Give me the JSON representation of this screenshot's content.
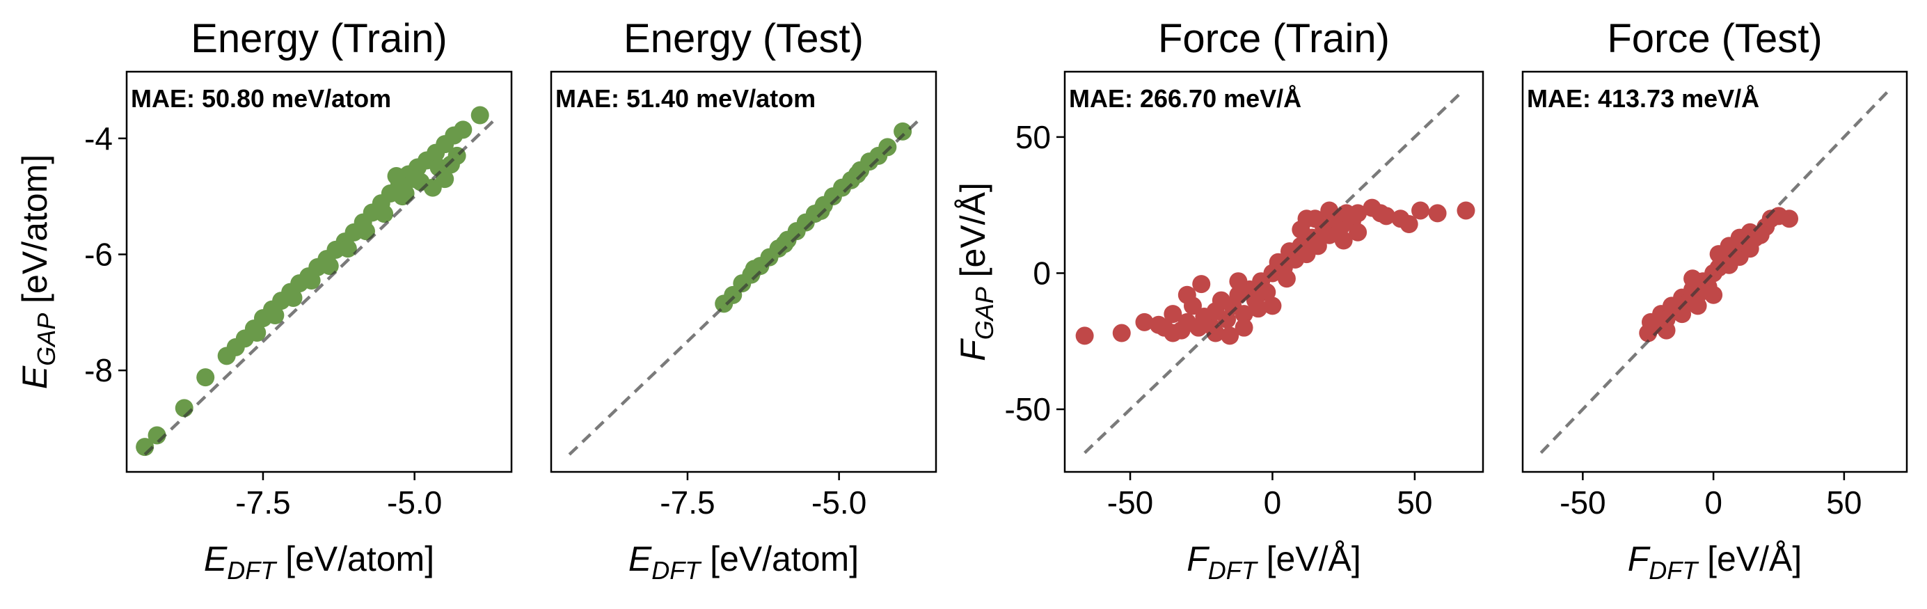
{
  "chart_data": [
    {
      "type": "scatter",
      "title": "Energy (Train)",
      "xlabel": {
        "main": "E",
        "sub": "DFT",
        "unit": " [eV/atom]"
      },
      "ylabel": {
        "main": "E",
        "sub": "GAP",
        "unit": " [eV/atom]"
      },
      "annotation": "MAE: 50.80 meV/atom",
      "xlim": [
        -9.75,
        -3.4
      ],
      "ylim": [
        -9.75,
        -2.85
      ],
      "xticks": [
        -7.5,
        -5.0
      ],
      "xtick_labels": [
        "-7.5",
        "-5.0"
      ],
      "yticks": [
        -8,
        -6,
        -4
      ],
      "ytick_labels": [
        "-8",
        "-6",
        "-4"
      ],
      "show_yticks": true,
      "color": "#6a9a4a",
      "diagonal": [
        -9.45,
        -3.7
      ],
      "points": [
        [
          -9.45,
          -9.32
        ],
        [
          -9.25,
          -9.12
        ],
        [
          -8.8,
          -8.65
        ],
        [
          -8.45,
          -8.12
        ],
        [
          -8.1,
          -7.75
        ],
        [
          -7.95,
          -7.6
        ],
        [
          -7.8,
          -7.45
        ],
        [
          -7.65,
          -7.28
        ],
        [
          -7.5,
          -7.1
        ],
        [
          -7.35,
          -6.95
        ],
        [
          -7.2,
          -6.8
        ],
        [
          -7.05,
          -6.65
        ],
        [
          -6.9,
          -6.5
        ],
        [
          -6.75,
          -6.38
        ],
        [
          -6.6,
          -6.22
        ],
        [
          -6.45,
          -6.08
        ],
        [
          -6.3,
          -5.92
        ],
        [
          -6.15,
          -5.78
        ],
        [
          -6.0,
          -5.62
        ],
        [
          -5.85,
          -5.45
        ],
        [
          -5.7,
          -5.28
        ],
        [
          -5.55,
          -5.12
        ],
        [
          -5.4,
          -4.95
        ],
        [
          -5.25,
          -4.8
        ],
        [
          -5.1,
          -4.62
        ],
        [
          -4.95,
          -4.5
        ],
        [
          -4.8,
          -4.38
        ],
        [
          -4.65,
          -4.25
        ],
        [
          -4.5,
          -4.1
        ],
        [
          -4.35,
          -3.95
        ],
        [
          -4.2,
          -3.85
        ],
        [
          -3.92,
          -3.6
        ],
        [
          -7.6,
          -7.35
        ],
        [
          -7.3,
          -7.05
        ],
        [
          -7.0,
          -6.75
        ],
        [
          -6.7,
          -6.45
        ],
        [
          -6.4,
          -6.2
        ],
        [
          -6.1,
          -5.9
        ],
        [
          -5.8,
          -5.6
        ],
        [
          -5.5,
          -5.3
        ],
        [
          -5.2,
          -5.0
        ],
        [
          -4.9,
          -4.75
        ],
        [
          -4.6,
          -4.5
        ],
        [
          -4.4,
          -4.45
        ],
        [
          -4.5,
          -4.7
        ],
        [
          -4.7,
          -4.85
        ],
        [
          -5.0,
          -4.7
        ],
        [
          -5.3,
          -4.65
        ],
        [
          -5.15,
          -4.95
        ],
        [
          -4.3,
          -4.3
        ]
      ]
    },
    {
      "type": "scatter",
      "title": "Energy (Test)",
      "xlabel": {
        "main": "E",
        "sub": "DFT",
        "unit": " [eV/atom]"
      },
      "ylabel": null,
      "annotation": "MAE: 51.40 meV/atom",
      "xlim": [
        -9.75,
        -3.4
      ],
      "ylim": [
        -9.75,
        -2.85
      ],
      "xticks": [
        -7.5,
        -5.0
      ],
      "xtick_labels": [
        "-7.5",
        "-5.0"
      ],
      "yticks": [],
      "ytick_labels": [],
      "show_yticks": false,
      "color": "#6a9a4a",
      "diagonal": [
        -9.45,
        -3.7
      ],
      "points": [
        [
          -6.9,
          -6.85
        ],
        [
          -6.75,
          -6.7
        ],
        [
          -6.6,
          -6.5
        ],
        [
          -6.45,
          -6.35
        ],
        [
          -6.3,
          -6.2
        ],
        [
          -6.15,
          -6.05
        ],
        [
          -6.0,
          -5.9
        ],
        [
          -5.85,
          -5.75
        ],
        [
          -5.7,
          -5.6
        ],
        [
          -5.55,
          -5.45
        ],
        [
          -5.4,
          -5.3
        ],
        [
          -5.25,
          -5.15
        ],
        [
          -5.1,
          -5.0
        ],
        [
          -4.95,
          -4.85
        ],
        [
          -4.8,
          -4.72
        ],
        [
          -4.65,
          -4.55
        ],
        [
          -4.5,
          -4.4
        ],
        [
          -4.35,
          -4.3
        ],
        [
          -4.2,
          -4.15
        ],
        [
          -3.95,
          -3.88
        ],
        [
          -6.4,
          -6.25
        ],
        [
          -5.9,
          -5.82
        ],
        [
          -5.3,
          -5.25
        ],
        [
          -4.7,
          -4.62
        ]
      ]
    },
    {
      "type": "scatter",
      "title": "Force (Train)",
      "xlabel": {
        "main": "F",
        "sub": "DFT",
        "unit": " [eV/Å]"
      },
      "ylabel": {
        "main": "F",
        "sub": "GAP",
        "unit": " [eV/Å]"
      },
      "annotation": "MAE: 266.70 meV/Å",
      "xlim": [
        -73,
        74
      ],
      "ylim": [
        -73,
        74
      ],
      "xticks": [
        -50,
        0,
        50
      ],
      "xtick_labels": [
        "-50",
        "0",
        "50"
      ],
      "yticks": [
        -50,
        0,
        50
      ],
      "ytick_labels": [
        "-50",
        "0",
        "50"
      ],
      "show_yticks": true,
      "color": "#c04848",
      "diagonal": [
        -66,
        67
      ],
      "points": [
        [
          -66,
          -23
        ],
        [
          -53,
          -22
        ],
        [
          -45,
          -18
        ],
        [
          -38,
          -20
        ],
        [
          -35,
          -15
        ],
        [
          -32,
          -21
        ],
        [
          -30,
          -18
        ],
        [
          -28,
          -12
        ],
        [
          -26,
          -20
        ],
        [
          -24,
          -16
        ],
        [
          -22,
          -19
        ],
        [
          -20,
          -14
        ],
        [
          -18,
          -10
        ],
        [
          -16,
          -17
        ],
        [
          -14,
          -12
        ],
        [
          -12,
          -8
        ],
        [
          -10,
          -15
        ],
        [
          -8,
          -6
        ],
        [
          -6,
          -10
        ],
        [
          -4,
          -3
        ],
        [
          -2,
          -7
        ],
        [
          0,
          0
        ],
        [
          2,
          4
        ],
        [
          4,
          2
        ],
        [
          6,
          8
        ],
        [
          8,
          5
        ],
        [
          10,
          10
        ],
        [
          12,
          7
        ],
        [
          14,
          13
        ],
        [
          16,
          10
        ],
        [
          18,
          17
        ],
        [
          20,
          14
        ],
        [
          22,
          20
        ],
        [
          24,
          17
        ],
        [
          26,
          22
        ],
        [
          28,
          19
        ],
        [
          30,
          22
        ],
        [
          35,
          24
        ],
        [
          40,
          21
        ],
        [
          45,
          20
        ],
        [
          48,
          18
        ],
        [
          52,
          23
        ],
        [
          58,
          22
        ],
        [
          68,
          23
        ],
        [
          -30,
          -8
        ],
        [
          -25,
          -4
        ],
        [
          -20,
          -22
        ],
        [
          -15,
          -23
        ],
        [
          -10,
          -20
        ],
        [
          -5,
          -13
        ],
        [
          5,
          -2
        ],
        [
          10,
          16
        ],
        [
          15,
          20
        ],
        [
          20,
          23
        ],
        [
          25,
          12
        ],
        [
          0,
          -12
        ],
        [
          -40,
          -19
        ],
        [
          -35,
          -22
        ],
        [
          30,
          15
        ],
        [
          38,
          22
        ],
        [
          -12,
          -3
        ],
        [
          12,
          20
        ]
      ]
    },
    {
      "type": "scatter",
      "title": "Force (Test)",
      "xlabel": {
        "main": "F",
        "sub": "DFT",
        "unit": " [eV/Å]"
      },
      "ylabel": null,
      "annotation": "MAE: 413.73 meV/Å",
      "xlim": [
        -73,
        74
      ],
      "ylim": [
        -73,
        74
      ],
      "xticks": [
        -50,
        0,
        50
      ],
      "xtick_labels": [
        "-50",
        "0",
        "50"
      ],
      "yticks": [],
      "ytick_labels": [],
      "show_yticks": false,
      "color": "#c04848",
      "diagonal": [
        -66,
        67
      ],
      "points": [
        [
          -25,
          -22
        ],
        [
          -22,
          -19
        ],
        [
          -20,
          -15
        ],
        [
          -18,
          -17
        ],
        [
          -16,
          -12
        ],
        [
          -14,
          -14
        ],
        [
          -12,
          -9
        ],
        [
          -10,
          -11
        ],
        [
          -8,
          -6
        ],
        [
          -6,
          -8
        ],
        [
          -4,
          -3
        ],
        [
          -2,
          -5
        ],
        [
          0,
          0
        ],
        [
          2,
          2
        ],
        [
          4,
          5
        ],
        [
          6,
          3
        ],
        [
          8,
          8
        ],
        [
          10,
          6
        ],
        [
          12,
          11
        ],
        [
          14,
          9
        ],
        [
          16,
          13
        ],
        [
          18,
          14
        ],
        [
          20,
          17
        ],
        [
          22,
          20
        ],
        [
          25,
          21
        ],
        [
          29,
          20
        ],
        [
          -24,
          -18
        ],
        [
          -18,
          -21
        ],
        [
          -12,
          -15
        ],
        [
          -6,
          -12
        ],
        [
          0,
          -8
        ],
        [
          6,
          10
        ],
        [
          10,
          13
        ],
        [
          14,
          15
        ],
        [
          2,
          7
        ],
        [
          -8,
          -2
        ]
      ]
    }
  ]
}
